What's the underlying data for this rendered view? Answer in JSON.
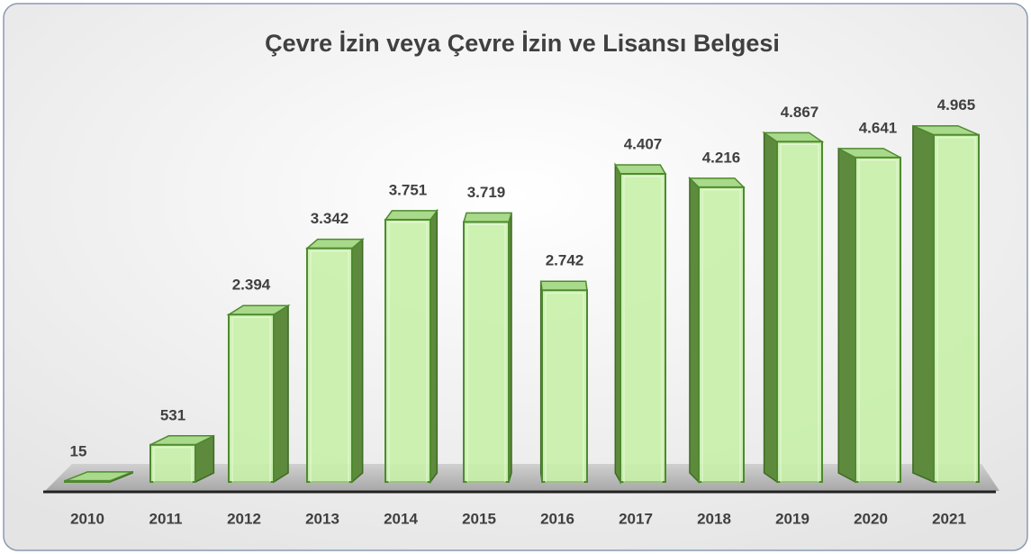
{
  "chart_data": {
    "type": "bar",
    "title": "Çevre İzin veya Çevre İzin ve Lisansı Belgesi",
    "categories": [
      "2010",
      "2011",
      "2012",
      "2013",
      "2014",
      "2015",
      "2016",
      "2017",
      "2018",
      "2019",
      "2020",
      "2021"
    ],
    "values": [
      15,
      531,
      2394,
      3342,
      3751,
      3719,
      2742,
      4407,
      4216,
      4867,
      4641,
      4965
    ],
    "value_labels": [
      "15",
      "531",
      "2.394",
      "3.342",
      "3.751",
      "3.719",
      "2.742",
      "4.407",
      "4.216",
      "4.867",
      "4.641",
      "4.965"
    ],
    "color": "#c6efa8",
    "ylim": [
      0,
      5000
    ]
  }
}
